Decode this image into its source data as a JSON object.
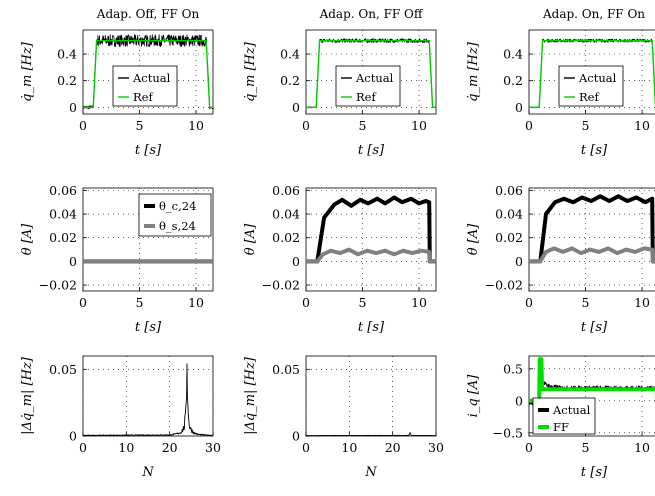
{
  "chart_data": [
    {
      "id": "r1c1",
      "type": "line",
      "title": "Adap. Off, FF On",
      "xlabel": "t [s]",
      "ylabel": "q̇_m [Hz]",
      "xlim": [
        0,
        11.5
      ],
      "ylim": [
        -0.05,
        0.58
      ],
      "xticks": [
        0,
        5,
        10
      ],
      "xticklabels": [
        "0",
        "5",
        "10"
      ],
      "yticks": [
        0,
        0.2,
        0.4
      ],
      "yticklabels": [
        "0",
        "0.2",
        "0.4"
      ],
      "grid": "dotted",
      "legend": {
        "position": "center",
        "entries": [
          {
            "label": "Actual",
            "color": "#000000"
          },
          {
            "label": "Ref",
            "color": "#00cc00"
          }
        ]
      },
      "series": [
        {
          "name": "Actual",
          "color": "#000000",
          "kind": "noisy_step",
          "x": [
            0,
            0.9,
            1.2,
            10.9,
            11.2,
            11.5
          ],
          "y": [
            0,
            0,
            0.5,
            0.5,
            0,
            0
          ],
          "noise": 0.045
        },
        {
          "name": "Ref",
          "color": "#00cc00",
          "kind": "line",
          "x": [
            0,
            0.9,
            1.2,
            10.9,
            11.2,
            11.5
          ],
          "y": [
            0,
            0,
            0.5,
            0.5,
            0,
            0
          ]
        }
      ]
    },
    {
      "id": "r1c2",
      "type": "line",
      "title": "Adap. On, FF Off",
      "xlabel": "t [s]",
      "ylabel": "q̇_m [Hz]",
      "xlim": [
        0,
        11.5
      ],
      "ylim": [
        -0.05,
        0.58
      ],
      "xticks": [
        0,
        5,
        10
      ],
      "xticklabels": [
        "0",
        "5",
        "10"
      ],
      "yticks": [
        0,
        0.2,
        0.4
      ],
      "yticklabels": [
        "0",
        "0.2",
        "0.4"
      ],
      "grid": "dotted",
      "legend": {
        "position": "center",
        "entries": [
          {
            "label": "Actual",
            "color": "#000000"
          },
          {
            "label": "Ref",
            "color": "#00cc00"
          }
        ]
      },
      "series": [
        {
          "name": "Actual",
          "color": "#000000",
          "kind": "noisy_step",
          "x": [
            0,
            0.9,
            1.2,
            10.9,
            11.2,
            11.5
          ],
          "y": [
            0,
            0,
            0.5,
            0.5,
            0,
            0
          ],
          "noise": 0.015
        },
        {
          "name": "Ref",
          "color": "#00cc00",
          "kind": "line",
          "x": [
            0,
            0.9,
            1.2,
            10.9,
            11.2,
            11.5
          ],
          "y": [
            0,
            0,
            0.5,
            0.5,
            0,
            0
          ]
        }
      ]
    },
    {
      "id": "r1c3",
      "type": "line",
      "title": "Adap. On, FF On",
      "xlabel": "t [s]",
      "ylabel": "q̇_m [Hz]",
      "xlim": [
        0,
        11.5
      ],
      "ylim": [
        -0.05,
        0.58
      ],
      "xticks": [
        0,
        5,
        10
      ],
      "xticklabels": [
        "0",
        "5",
        "10"
      ],
      "yticks": [
        0,
        0.2,
        0.4
      ],
      "yticklabels": [
        "0",
        "0.2",
        "0.4"
      ],
      "grid": "dotted",
      "legend": {
        "position": "center",
        "entries": [
          {
            "label": "Actual",
            "color": "#000000"
          },
          {
            "label": "Ref",
            "color": "#00cc00"
          }
        ]
      },
      "series": [
        {
          "name": "Actual",
          "color": "#000000",
          "kind": "noisy_step",
          "x": [
            0,
            0.9,
            1.2,
            10.9,
            11.2,
            11.5
          ],
          "y": [
            0,
            0,
            0.5,
            0.5,
            0,
            0
          ],
          "noise": 0.012
        },
        {
          "name": "Ref",
          "color": "#00cc00",
          "kind": "line",
          "x": [
            0,
            0.9,
            1.2,
            10.9,
            11.2,
            11.5
          ],
          "y": [
            0,
            0,
            0.5,
            0.5,
            0,
            0
          ]
        }
      ]
    },
    {
      "id": "r2c1",
      "type": "line",
      "title": "",
      "xlabel": "t [s]",
      "ylabel": "θ [A]",
      "xlim": [
        0,
        11.5
      ],
      "ylim": [
        -0.025,
        0.062
      ],
      "xticks": [
        0,
        5,
        10
      ],
      "xticklabels": [
        "0",
        "5",
        "10"
      ],
      "yticks": [
        -0.02,
        0,
        0.02,
        0.04,
        0.06
      ],
      "yticklabels": [
        "−0.02",
        "0",
        "0.02",
        "0.04",
        "0.06"
      ],
      "grid": "dotted",
      "legend": {
        "position": "top-right",
        "entries": [
          {
            "label": "θ_c,24",
            "color": "#000000"
          },
          {
            "label": "θ_s,24",
            "color": "#808080"
          }
        ]
      },
      "series": [
        {
          "name": "θ_c,24",
          "color": "#000000",
          "kind": "thick",
          "x": [
            0,
            11.5
          ],
          "y": [
            0,
            0
          ]
        },
        {
          "name": "θ_s,24",
          "color": "#808080",
          "kind": "thick",
          "x": [
            0,
            11.5
          ],
          "y": [
            0,
            0
          ]
        }
      ]
    },
    {
      "id": "r2c2",
      "type": "line",
      "title": "",
      "xlabel": "t [s]",
      "ylabel": "θ [A]",
      "xlim": [
        0,
        11.5
      ],
      "ylim": [
        -0.025,
        0.062
      ],
      "xticks": [
        0,
        5,
        10
      ],
      "xticklabels": [
        "0",
        "5",
        "10"
      ],
      "yticks": [
        -0.02,
        0,
        0.02,
        0.04,
        0.06
      ],
      "yticklabels": [
        "−0.02",
        "0",
        "0.02",
        "0.04",
        "0.06"
      ],
      "grid": "dotted",
      "legend": null,
      "series": [
        {
          "name": "θ_c,24",
          "color": "#000000",
          "kind": "thick",
          "x": [
            0,
            1.0,
            1.6,
            2.5,
            3.2,
            4.0,
            4.8,
            5.5,
            6.3,
            7.0,
            7.8,
            8.5,
            9.3,
            10.0,
            10.6,
            10.9,
            10.95,
            11.5
          ],
          "y": [
            0,
            0,
            0.037,
            0.048,
            0.052,
            0.047,
            0.052,
            0.049,
            0.053,
            0.049,
            0.054,
            0.05,
            0.053,
            0.049,
            0.051,
            0.05,
            0,
            0
          ]
        },
        {
          "name": "θ_s,24",
          "color": "#808080",
          "kind": "thick",
          "x": [
            0,
            1.0,
            1.5,
            2.2,
            3.0,
            3.8,
            4.6,
            5.4,
            6.2,
            7.0,
            7.8,
            8.6,
            9.4,
            10.2,
            10.9,
            10.95,
            11.5
          ],
          "y": [
            0,
            0,
            0.006,
            0.009,
            0.007,
            0.01,
            0.006,
            0.009,
            0.007,
            0.009,
            0.006,
            0.009,
            0.007,
            0.009,
            0.008,
            0,
            0
          ]
        }
      ]
    },
    {
      "id": "r2c3",
      "type": "line",
      "title": "",
      "xlabel": "t [s]",
      "ylabel": "θ [A]",
      "xlim": [
        0,
        11.5
      ],
      "ylim": [
        -0.025,
        0.062
      ],
      "xticks": [
        0,
        5,
        10
      ],
      "xticklabels": [
        "0",
        "5",
        "10"
      ],
      "yticks": [
        -0.02,
        0,
        0.02,
        0.04,
        0.06
      ],
      "yticklabels": [
        "−0.02",
        "0",
        "0.02",
        "0.04",
        "0.06"
      ],
      "grid": "dotted",
      "legend": null,
      "series": [
        {
          "name": "θ_c,24",
          "color": "#000000",
          "kind": "thick",
          "x": [
            0,
            1.0,
            1.5,
            2.3,
            3.1,
            3.9,
            4.7,
            5.5,
            6.3,
            7.1,
            7.9,
            8.7,
            9.5,
            10.3,
            10.9,
            10.95,
            11.5
          ],
          "y": [
            0,
            0,
            0.04,
            0.05,
            0.053,
            0.05,
            0.054,
            0.051,
            0.055,
            0.051,
            0.055,
            0.051,
            0.054,
            0.05,
            0.053,
            0,
            0
          ]
        },
        {
          "name": "θ_s,24",
          "color": "#808080",
          "kind": "thick",
          "x": [
            0,
            1.0,
            1.5,
            2.2,
            3.0,
            3.8,
            4.6,
            5.4,
            6.2,
            7.0,
            7.8,
            8.6,
            9.4,
            10.2,
            10.9,
            10.95,
            11.5
          ],
          "y": [
            0,
            0,
            0.008,
            0.011,
            0.008,
            0.011,
            0.007,
            0.01,
            0.008,
            0.011,
            0.007,
            0.01,
            0.008,
            0.011,
            0.01,
            0,
            0
          ]
        }
      ]
    },
    {
      "id": "r3c1",
      "type": "line",
      "title": "",
      "xlabel": "N",
      "ylabel": "|Δq̇_m| [Hz]",
      "xlim": [
        0,
        30
      ],
      "ylim": [
        0,
        0.06
      ],
      "xticks": [
        0,
        10,
        20,
        30
      ],
      "xticklabels": [
        "0",
        "10",
        "20",
        "30"
      ],
      "yticks": [
        0,
        0.05
      ],
      "yticklabels": [
        "0",
        "0.05"
      ],
      "grid": "dotted",
      "legend": null,
      "series": [
        {
          "name": "spectrum",
          "color": "#000000",
          "kind": "spectrum",
          "x": [
            0,
            20,
            21.5,
            22.5,
            23.3,
            23.7,
            24.0,
            24.3,
            24.7,
            25.5,
            26.5,
            28,
            30
          ],
          "y": [
            0.0005,
            0.0008,
            0.0015,
            0.0025,
            0.006,
            0.015,
            0.055,
            0.015,
            0.006,
            0.0025,
            0.0012,
            0.0008,
            0.0005
          ]
        }
      ]
    },
    {
      "id": "r3c2",
      "type": "line",
      "title": "",
      "xlabel": "N",
      "ylabel": "|Δq̇_m| [Hz]",
      "xlim": [
        0,
        30
      ],
      "ylim": [
        0,
        0.06
      ],
      "xticks": [
        0,
        10,
        20,
        30
      ],
      "xticklabels": [
        "0",
        "10",
        "20",
        "30"
      ],
      "yticks": [
        0,
        0.05
      ],
      "yticklabels": [
        "0",
        "0.05"
      ],
      "grid": "dotted",
      "legend": null,
      "series": [
        {
          "name": "spectrum",
          "color": "#000000",
          "kind": "spectrum",
          "x": [
            0,
            23.7,
            24.0,
            24.3,
            30
          ],
          "y": [
            0.0003,
            0.0004,
            0.0025,
            0.0004,
            0.0003
          ]
        }
      ]
    },
    {
      "id": "r3c3",
      "type": "line",
      "title": "",
      "xlabel": "t [s]",
      "ylabel": "i_q [A]",
      "xlim": [
        0,
        11.5
      ],
      "ylim": [
        -0.55,
        0.7
      ],
      "xticks": [
        0,
        5,
        10
      ],
      "xticklabels": [
        "0",
        "5",
        "10"
      ],
      "yticks": [
        -0.5,
        0,
        0.5
      ],
      "yticklabels": [
        "−0.5",
        "0",
        "0.5"
      ],
      "grid": "dotted",
      "legend": {
        "position": "bottom-left",
        "entries": [
          {
            "label": "Actual",
            "color": "#000000"
          },
          {
            "label": "FF",
            "color": "#00dd00"
          }
        ]
      },
      "series": [
        {
          "name": "Actual",
          "color": "#000000",
          "kind": "noisy_current",
          "x": [
            0,
            0.9,
            1.0,
            1.2,
            1.5,
            2.0,
            3.0,
            11.0,
            11.5
          ],
          "y": [
            -0.05,
            -0.05,
            0.45,
            0.3,
            0.25,
            0.22,
            0.2,
            0.2,
            0.2
          ],
          "noise": 0.035
        },
        {
          "name": "FF",
          "color": "#00dd00",
          "kind": "thick",
          "x": [
            0,
            0.9,
            0.95,
            1.1,
            1.15,
            11.3,
            11.35,
            11.5
          ],
          "y": [
            0,
            0,
            0.65,
            0.65,
            0.18,
            0.18,
            -0.35,
            -0.35
          ]
        }
      ]
    }
  ]
}
